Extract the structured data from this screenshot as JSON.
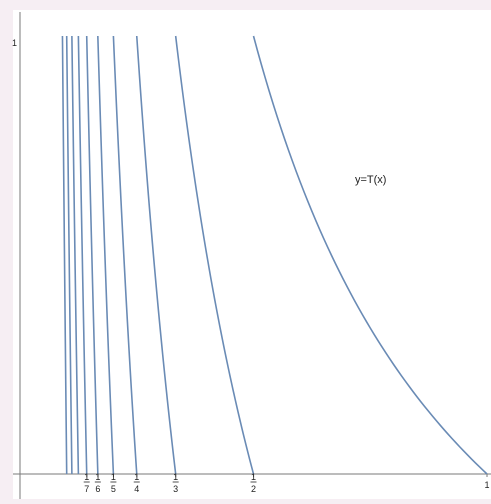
{
  "chart_data": {
    "type": "line",
    "title": "",
    "xlabel": "",
    "ylabel": "",
    "xlim": [
      0,
      1
    ],
    "ylim": [
      0,
      1
    ],
    "grid": false,
    "curve_color": "#6a8bb5",
    "axis_color": "#7a7a7a",
    "curve_label": "y=T(x)",
    "function": "y = 1/x - n on each interval (1/(n+1), 1/n]",
    "x_ticks": [
      {
        "value": 0.142857,
        "num": "1",
        "den": "7"
      },
      {
        "value": 0.166667,
        "num": "1",
        "den": "6"
      },
      {
        "value": 0.2,
        "num": "1",
        "den": "5"
      },
      {
        "value": 0.25,
        "num": "1",
        "den": "4"
      },
      {
        "value": 0.333333,
        "num": "1",
        "den": "3"
      },
      {
        "value": 0.5,
        "num": "1",
        "den": "2"
      },
      {
        "value": 1,
        "label": "1"
      }
    ],
    "y_ticks": [
      {
        "value": 1,
        "label": "1"
      }
    ],
    "branches": [
      {
        "n": 1,
        "x_from": 0.5,
        "x_to": 1
      },
      {
        "n": 2,
        "x_from": 0.333333,
        "x_to": 0.5
      },
      {
        "n": 3,
        "x_from": 0.25,
        "x_to": 0.333333
      },
      {
        "n": 4,
        "x_from": 0.2,
        "x_to": 0.25
      },
      {
        "n": 5,
        "x_from": 0.166667,
        "x_to": 0.2
      },
      {
        "n": 6,
        "x_from": 0.142857,
        "x_to": 0.166667
      },
      {
        "n": 7,
        "x_from": 0.125,
        "x_to": 0.142857
      },
      {
        "n": 8,
        "x_from": 0.111111,
        "x_to": 0.125
      },
      {
        "n": 9,
        "x_from": 0.1,
        "x_to": 0.111111
      },
      {
        "n": 10,
        "x_from": 0.090909,
        "x_to": 0.1
      }
    ]
  }
}
